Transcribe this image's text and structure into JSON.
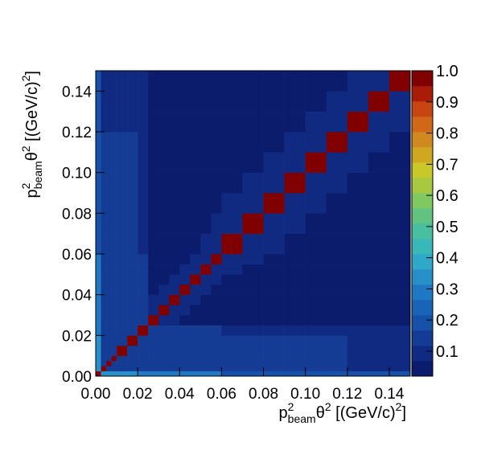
{
  "chart_data": {
    "type": "heatmap",
    "x_label": [
      {
        "text": "p"
      },
      {
        "sup": "2"
      },
      {
        "sub": "beam"
      },
      {
        "text": "θ"
      },
      {
        "sup": "2"
      },
      {
        "text": " [(GeV/c)"
      },
      {
        "sup": "2"
      },
      {
        "text": "]"
      }
    ],
    "y_label": [
      {
        "text": "p"
      },
      {
        "sup": "2"
      },
      {
        "sub": "beam"
      },
      {
        "text": "θ"
      },
      {
        "sup": "2"
      },
      {
        "text": " [(GeV/c)"
      },
      {
        "sup": "2"
      },
      {
        "text": "]"
      }
    ],
    "xlim": [
      0,
      0.15
    ],
    "ylim": [
      0,
      0.15
    ],
    "xticks": [
      {
        "value": 0,
        "label": "0.00"
      },
      {
        "value": 0.02,
        "label": "0.02"
      },
      {
        "value": 0.04,
        "label": "0.04"
      },
      {
        "value": 0.06,
        "label": "0.06"
      },
      {
        "value": 0.08,
        "label": "0.08"
      },
      {
        "value": 0.1,
        "label": "0.10"
      },
      {
        "value": 0.12,
        "label": "0.12"
      },
      {
        "value": 0.14,
        "label": "0.14"
      }
    ],
    "yticks": [
      {
        "value": 0,
        "label": "0.00"
      },
      {
        "value": 0.02,
        "label": "0.02"
      },
      {
        "value": 0.04,
        "label": "0.04"
      },
      {
        "value": 0.06,
        "label": "0.06"
      },
      {
        "value": 0.08,
        "label": "0.08"
      },
      {
        "value": 0.1,
        "label": "0.10"
      },
      {
        "value": 0.12,
        "label": "0.12"
      },
      {
        "value": 0.14,
        "label": "0.14"
      }
    ],
    "xbins": [
      0,
      0.0025,
      0.005,
      0.0075,
      0.01,
      0.015,
      0.02,
      0.025,
      0.03,
      0.035,
      0.04,
      0.045,
      0.05,
      0.055,
      0.06,
      0.07,
      0.08,
      0.09,
      0.1,
      0.11,
      0.12,
      0.13,
      0.14,
      0.15
    ],
    "ybins": [
      0,
      0.0025,
      0.005,
      0.0075,
      0.01,
      0.015,
      0.02,
      0.025,
      0.03,
      0.035,
      0.04,
      0.045,
      0.05,
      0.055,
      0.06,
      0.07,
      0.08,
      0.09,
      0.1,
      0.11,
      0.12,
      0.13,
      0.14,
      0.15
    ],
    "z": [
      [
        1,
        0.32,
        0.32,
        0.32,
        0.32,
        0.32,
        0.27,
        0.27,
        0.27,
        0.27,
        0.27,
        0.27,
        0.27,
        0.27,
        0.18,
        0.18,
        0.18,
        0.18,
        0.18,
        0.18,
        0.18,
        0.18,
        0.18
      ],
      [
        0.32,
        1,
        0.12,
        0.12,
        0.12,
        0.12,
        0.12,
        0.12,
        0.12,
        0.12,
        0.12,
        0.12,
        0.12,
        0.12,
        0.14,
        0.14,
        0.14,
        0.14,
        0.14,
        0.14,
        0.1,
        0.1,
        0.1
      ],
      [
        0.32,
        0.12,
        1,
        0.12,
        0.12,
        0.12,
        0.12,
        0.12,
        0.12,
        0.12,
        0.12,
        0.12,
        0.12,
        0.12,
        0.14,
        0.14,
        0.14,
        0.14,
        0.14,
        0.14,
        0.1,
        0.1,
        0.1
      ],
      [
        0.32,
        0.12,
        0.12,
        1,
        0.12,
        0.12,
        0.12,
        0.12,
        0.12,
        0.12,
        0.12,
        0.12,
        0.12,
        0.12,
        0.14,
        0.14,
        0.14,
        0.14,
        0.14,
        0.14,
        0.1,
        0.1,
        0.1
      ],
      [
        0.32,
        0.12,
        0.12,
        0.12,
        1,
        0.12,
        0.12,
        0.12,
        0.12,
        0.12,
        0.12,
        0.12,
        0.12,
        0.12,
        0.14,
        0.14,
        0.14,
        0.14,
        0.14,
        0.14,
        0.1,
        0.1,
        0.1
      ],
      [
        0.32,
        0.12,
        0.12,
        0.12,
        0.12,
        1,
        0.12,
        0.12,
        0.12,
        0.12,
        0.12,
        0.12,
        0.12,
        0.12,
        0.14,
        0.14,
        0.14,
        0.14,
        0.14,
        0.14,
        0.1,
        0.1,
        0.1
      ],
      [
        0.27,
        0.12,
        0.12,
        0.12,
        0.12,
        0.12,
        1,
        0.12,
        0.12,
        0.12,
        0.12,
        0.12,
        0.12,
        0.12,
        0.1,
        0.1,
        0.1,
        0.1,
        0.1,
        0.1,
        0.1,
        0.1,
        0.1
      ],
      [
        0.27,
        0.12,
        0.12,
        0.12,
        0.12,
        0.12,
        0.12,
        1,
        0.08,
        0.08,
        0.05,
        0.05,
        0.05,
        0.05,
        0.05,
        0.05,
        0.05,
        0.05,
        0.05,
        0.05,
        0.05,
        0.05,
        0.05
      ],
      [
        0.27,
        0.12,
        0.12,
        0.12,
        0.12,
        0.12,
        0.12,
        0.08,
        1,
        0.08,
        0.08,
        0.05,
        0.05,
        0.05,
        0.05,
        0.05,
        0.05,
        0.05,
        0.05,
        0.05,
        0.05,
        0.05,
        0.05
      ],
      [
        0.27,
        0.12,
        0.12,
        0.12,
        0.12,
        0.12,
        0.12,
        0.08,
        0.08,
        1,
        0.08,
        0.08,
        0.05,
        0.05,
        0.05,
        0.05,
        0.05,
        0.05,
        0.05,
        0.05,
        0.05,
        0.05,
        0.05
      ],
      [
        0.27,
        0.12,
        0.12,
        0.12,
        0.12,
        0.12,
        0.12,
        0.05,
        0.08,
        0.08,
        1,
        0.08,
        0.08,
        0.05,
        0.05,
        0.05,
        0.05,
        0.05,
        0.05,
        0.05,
        0.05,
        0.05,
        0.05
      ],
      [
        0.27,
        0.12,
        0.12,
        0.12,
        0.12,
        0.12,
        0.12,
        0.05,
        0.05,
        0.08,
        0.08,
        1,
        0.08,
        0.08,
        0.05,
        0.05,
        0.05,
        0.05,
        0.05,
        0.05,
        0.05,
        0.05,
        0.05
      ],
      [
        0.27,
        0.12,
        0.12,
        0.12,
        0.12,
        0.12,
        0.12,
        0.05,
        0.05,
        0.05,
        0.08,
        0.08,
        1,
        0.08,
        0.08,
        0.05,
        0.05,
        0.05,
        0.05,
        0.05,
        0.05,
        0.05,
        0.05
      ],
      [
        0.27,
        0.12,
        0.12,
        0.12,
        0.12,
        0.12,
        0.12,
        0.05,
        0.05,
        0.05,
        0.05,
        0.08,
        0.08,
        1,
        0.08,
        0.08,
        0.05,
        0.05,
        0.05,
        0.05,
        0.05,
        0.05,
        0.05
      ],
      [
        0.18,
        0.14,
        0.14,
        0.14,
        0.14,
        0.14,
        0.1,
        0.05,
        0.05,
        0.05,
        0.05,
        0.05,
        0.08,
        0.08,
        1,
        0.08,
        0.08,
        0.05,
        0.05,
        0.05,
        0.05,
        0.05,
        0.05
      ],
      [
        0.18,
        0.14,
        0.14,
        0.14,
        0.14,
        0.14,
        0.1,
        0.05,
        0.05,
        0.05,
        0.05,
        0.05,
        0.05,
        0.08,
        0.08,
        1,
        0.08,
        0.08,
        0.05,
        0.05,
        0.05,
        0.05,
        0.05
      ],
      [
        0.18,
        0.14,
        0.14,
        0.14,
        0.14,
        0.14,
        0.1,
        0.05,
        0.05,
        0.05,
        0.05,
        0.05,
        0.05,
        0.05,
        0.08,
        0.08,
        1,
        0.08,
        0.08,
        0.05,
        0.05,
        0.05,
        0.05
      ],
      [
        0.18,
        0.14,
        0.14,
        0.14,
        0.14,
        0.14,
        0.1,
        0.05,
        0.05,
        0.05,
        0.05,
        0.05,
        0.05,
        0.05,
        0.05,
        0.08,
        0.08,
        1,
        0.08,
        0.08,
        0.05,
        0.05,
        0.05
      ],
      [
        0.18,
        0.14,
        0.14,
        0.14,
        0.14,
        0.14,
        0.1,
        0.05,
        0.05,
        0.05,
        0.05,
        0.05,
        0.05,
        0.05,
        0.05,
        0.05,
        0.08,
        0.08,
        1,
        0.08,
        0.08,
        0.05,
        0.05
      ],
      [
        0.18,
        0.14,
        0.14,
        0.14,
        0.14,
        0.14,
        0.1,
        0.05,
        0.05,
        0.05,
        0.05,
        0.05,
        0.05,
        0.05,
        0.05,
        0.05,
        0.05,
        0.08,
        0.08,
        1,
        0.08,
        0.08,
        0.05
      ],
      [
        0.18,
        0.1,
        0.1,
        0.1,
        0.1,
        0.1,
        0.1,
        0.05,
        0.05,
        0.05,
        0.05,
        0.05,
        0.05,
        0.05,
        0.05,
        0.05,
        0.05,
        0.05,
        0.08,
        0.08,
        1,
        0.08,
        0.08
      ],
      [
        0.18,
        0.1,
        0.1,
        0.1,
        0.1,
        0.1,
        0.1,
        0.05,
        0.05,
        0.05,
        0.05,
        0.05,
        0.05,
        0.05,
        0.05,
        0.05,
        0.05,
        0.05,
        0.05,
        0.08,
        0.08,
        1,
        0.08
      ],
      [
        0.18,
        0.1,
        0.1,
        0.1,
        0.1,
        0.1,
        0.1,
        0.05,
        0.05,
        0.05,
        0.05,
        0.05,
        0.05,
        0.05,
        0.05,
        0.05,
        0.05,
        0.05,
        0.05,
        0.05,
        0.08,
        0.08,
        1
      ]
    ],
    "zlim": [
      0.02,
      1
    ],
    "zticks": [
      0.1,
      0.2,
      0.3,
      0.4,
      0.5,
      0.6,
      0.7,
      0.8,
      0.9,
      {
        "value": 1,
        "label": "1.0"
      }
    ],
    "palette": [
      "#0c1c6c",
      "#0f2a80",
      "#143c94",
      "#1650a8",
      "#1a64b8",
      "#1f78c4",
      "#2890c8",
      "#30a8c8",
      "#38b8b8",
      "#48c0a0",
      "#60c480",
      "#80c860",
      "#a8c840",
      "#c8c828",
      "#d0a820",
      "#d08820",
      "#d06818",
      "#c84410",
      "#a81c08",
      "#800000"
    ]
  }
}
